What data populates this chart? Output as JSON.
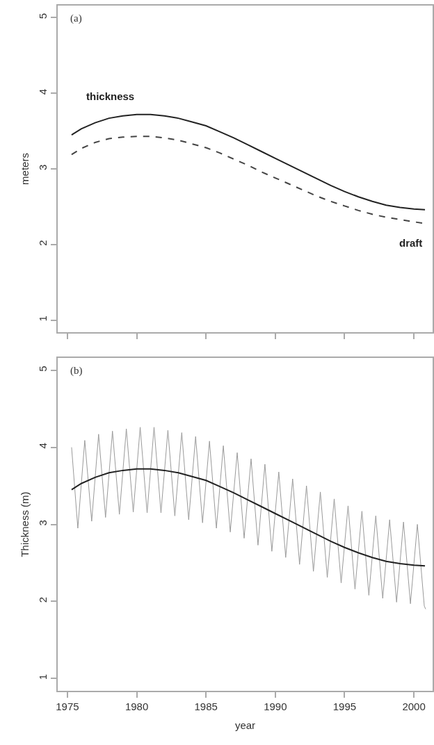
{
  "chart_data": [
    {
      "type": "line",
      "annotations": [
        "(a)"
      ],
      "ylabel": "meters",
      "xlim": [
        1974.3,
        2001.35
      ],
      "xticks": [
        {
          "value": 1975,
          "label": null
        },
        {
          "value": 1980,
          "label": null
        },
        {
          "value": 1985,
          "label": null
        },
        {
          "value": 1990,
          "label": null
        },
        {
          "value": 1995,
          "label": null
        },
        {
          "value": 2000,
          "label": null
        }
      ],
      "ylim": [
        0.84,
        5.16
      ],
      "yticks": [
        1,
        2,
        3,
        4,
        5
      ],
      "tick_labels": "y",
      "series": [
        {
          "name": "thickness",
          "color": "#222222",
          "line_style": "solid",
          "x": [
            1975.3,
            1976,
            1977,
            1978,
            1979,
            1980,
            1981,
            1982,
            1983,
            1984,
            1985,
            1986,
            1987,
            1988,
            1989,
            1990,
            1991,
            1992,
            1993,
            1994,
            1995,
            1996,
            1997,
            1998,
            1999,
            2000,
            2000.8
          ],
          "values": [
            3.45,
            3.53,
            3.61,
            3.67,
            3.7,
            3.72,
            3.72,
            3.7,
            3.67,
            3.62,
            3.57,
            3.49,
            3.41,
            3.32,
            3.23,
            3.14,
            3.05,
            2.96,
            2.87,
            2.78,
            2.7,
            2.63,
            2.57,
            2.52,
            2.49,
            2.47,
            2.46
          ]
        },
        {
          "name": "draft",
          "color": "#444444",
          "line_style": "dashed",
          "x": [
            1975.3,
            1976,
            1977,
            1978,
            1979,
            1980,
            1981,
            1982,
            1983,
            1984,
            1985,
            1986,
            1987,
            1988,
            1989,
            1990,
            1991,
            1992,
            1993,
            1994,
            1995,
            1996,
            1997,
            1998,
            1999,
            2000,
            2000.7
          ],
          "values": [
            3.19,
            3.27,
            3.35,
            3.4,
            3.42,
            3.43,
            3.43,
            3.41,
            3.38,
            3.33,
            3.28,
            3.21,
            3.13,
            3.05,
            2.96,
            2.88,
            2.8,
            2.72,
            2.64,
            2.57,
            2.51,
            2.45,
            2.4,
            2.36,
            2.33,
            2.3,
            2.28
          ]
        }
      ]
    },
    {
      "type": "line",
      "annotations": [
        "(b)"
      ],
      "xlabel": "year",
      "ylabel": "Thickness (m)",
      "xlim": [
        1974.3,
        2001.35
      ],
      "xticks": [
        1975,
        1980,
        1985,
        1990,
        1995,
        2000
      ],
      "ylim": [
        0.84,
        5.16
      ],
      "yticks": [
        1,
        2,
        3,
        4,
        5
      ],
      "series": [
        {
          "color": "#9a9a9a",
          "line_style": "solid",
          "x": [
            1975.3,
            1975.75,
            1976.25,
            1976.75,
            1977.25,
            1977.75,
            1978.25,
            1978.75,
            1979.25,
            1979.75,
            1980.25,
            1980.75,
            1981.25,
            1981.75,
            1982.25,
            1982.75,
            1983.25,
            1983.75,
            1984.25,
            1984.75,
            1985.25,
            1985.75,
            1986.25,
            1986.75,
            1987.25,
            1987.75,
            1988.25,
            1988.75,
            1989.25,
            1989.75,
            1990.25,
            1990.75,
            1991.25,
            1991.75,
            1992.25,
            1992.75,
            1993.25,
            1993.75,
            1994.25,
            1994.75,
            1995.25,
            1995.75,
            1996.25,
            1996.75,
            1997.25,
            1997.75,
            1998.25,
            1998.75,
            1999.25,
            1999.75,
            2000.25,
            2000.75,
            2000.85
          ],
          "values": [
            4.0,
            2.95,
            4.09,
            3.04,
            4.17,
            3.09,
            4.21,
            3.13,
            4.24,
            3.16,
            4.26,
            3.15,
            4.26,
            3.15,
            4.22,
            3.11,
            4.19,
            3.06,
            4.14,
            3.02,
            4.08,
            2.95,
            4.02,
            2.9,
            3.93,
            2.82,
            3.85,
            2.73,
            3.78,
            2.65,
            3.68,
            2.57,
            3.59,
            2.48,
            3.5,
            2.39,
            3.42,
            2.31,
            3.33,
            2.24,
            3.24,
            2.16,
            3.17,
            2.08,
            3.11,
            2.04,
            3.06,
            1.99,
            3.03,
            1.97,
            3.0,
            1.94,
            1.9
          ]
        },
        {
          "color": "#222222",
          "line_style": "solid",
          "x": [
            1975.3,
            1976,
            1977,
            1978,
            1979,
            1980,
            1981,
            1982,
            1983,
            1984,
            1985,
            1986,
            1987,
            1988,
            1989,
            1990,
            1991,
            1992,
            1993,
            1994,
            1995,
            1996,
            1997,
            1998,
            1999,
            2000,
            2000.8
          ],
          "values": [
            3.45,
            3.53,
            3.61,
            3.67,
            3.7,
            3.72,
            3.72,
            3.7,
            3.67,
            3.62,
            3.57,
            3.49,
            3.41,
            3.32,
            3.23,
            3.14,
            3.05,
            2.96,
            2.87,
            2.78,
            2.7,
            2.63,
            2.57,
            2.52,
            2.49,
            2.47,
            2.46
          ]
        }
      ]
    }
  ]
}
